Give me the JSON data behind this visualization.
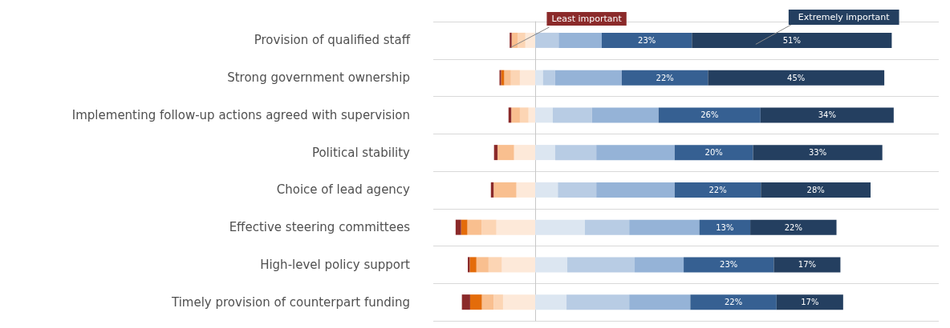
{
  "chart_data": {
    "type": "bar",
    "orientation": "horizontal",
    "xlim": [
      -26,
      103
    ],
    "stacked": true,
    "grid": "y",
    "tick_labels": "y",
    "legend": false,
    "categories": [
      "Provision of qualified staff",
      "Strong government ownership",
      "Implementing follow-up actions agreed with supervision",
      "Political stability",
      "Choice of lead agency",
      "Effective steering committees",
      "High-level policy support",
      "Timely provision of counterpart funding"
    ],
    "series": [
      {
        "color": "#fde9d9",
        "values": [
          -2.5,
          -3.9,
          -1.7,
          -5.4,
          -4.8,
          -9.9,
          -8.5,
          -8.2
        ]
      },
      {
        "color": "#fcd5b4",
        "values": [
          -2,
          -2.3,
          -2.2,
          0,
          0,
          -3.8,
          -3.4,
          -2.4
        ]
      },
      {
        "color": "#f9bf8f",
        "values": [
          -1.5,
          -1.7,
          -2.2,
          -4.2,
          -5.8,
          -3.6,
          -3.1,
          -3
        ]
      },
      {
        "color": "#e46c0a",
        "values": [
          0,
          -0.8,
          0,
          0,
          0,
          -1.6,
          -1.7,
          -3
        ]
      },
      {
        "name": "Least important",
        "color": "#8b2a2a",
        "values": [
          -0.5,
          -0.4,
          -0.7,
          -0.9,
          -0.7,
          -1.4,
          -0.5,
          -2.1
        ]
      },
      {
        "color": "#dce6f1",
        "values": [
          0,
          2,
          4.5,
          5.1,
          5.8,
          12.7,
          8.2,
          8
        ]
      },
      {
        "color": "#b8cce4",
        "values": [
          6,
          3.1,
          10,
          10.5,
          9.8,
          11.3,
          17.2,
          16
        ]
      },
      {
        "color": "#95b3d7",
        "values": [
          11,
          17,
          17,
          20,
          20,
          17.9,
          12.5,
          15.6
        ]
      },
      {
        "color": "#366092",
        "values": [
          23,
          22,
          26,
          20,
          22,
          13,
          23,
          22
        ],
        "value_labels": [
          "23%",
          "22%",
          "26%",
          "20%",
          "22%",
          "13%",
          "23%",
          "22%"
        ]
      },
      {
        "name": "Extremely important",
        "color": "#243f60",
        "values": [
          51,
          45,
          34,
          33,
          28,
          22,
          17,
          17
        ],
        "value_labels": [
          "51%",
          "45%",
          "34%",
          "33%",
          "28%",
          "22%",
          "17%",
          "17%"
        ]
      }
    ]
  }
}
